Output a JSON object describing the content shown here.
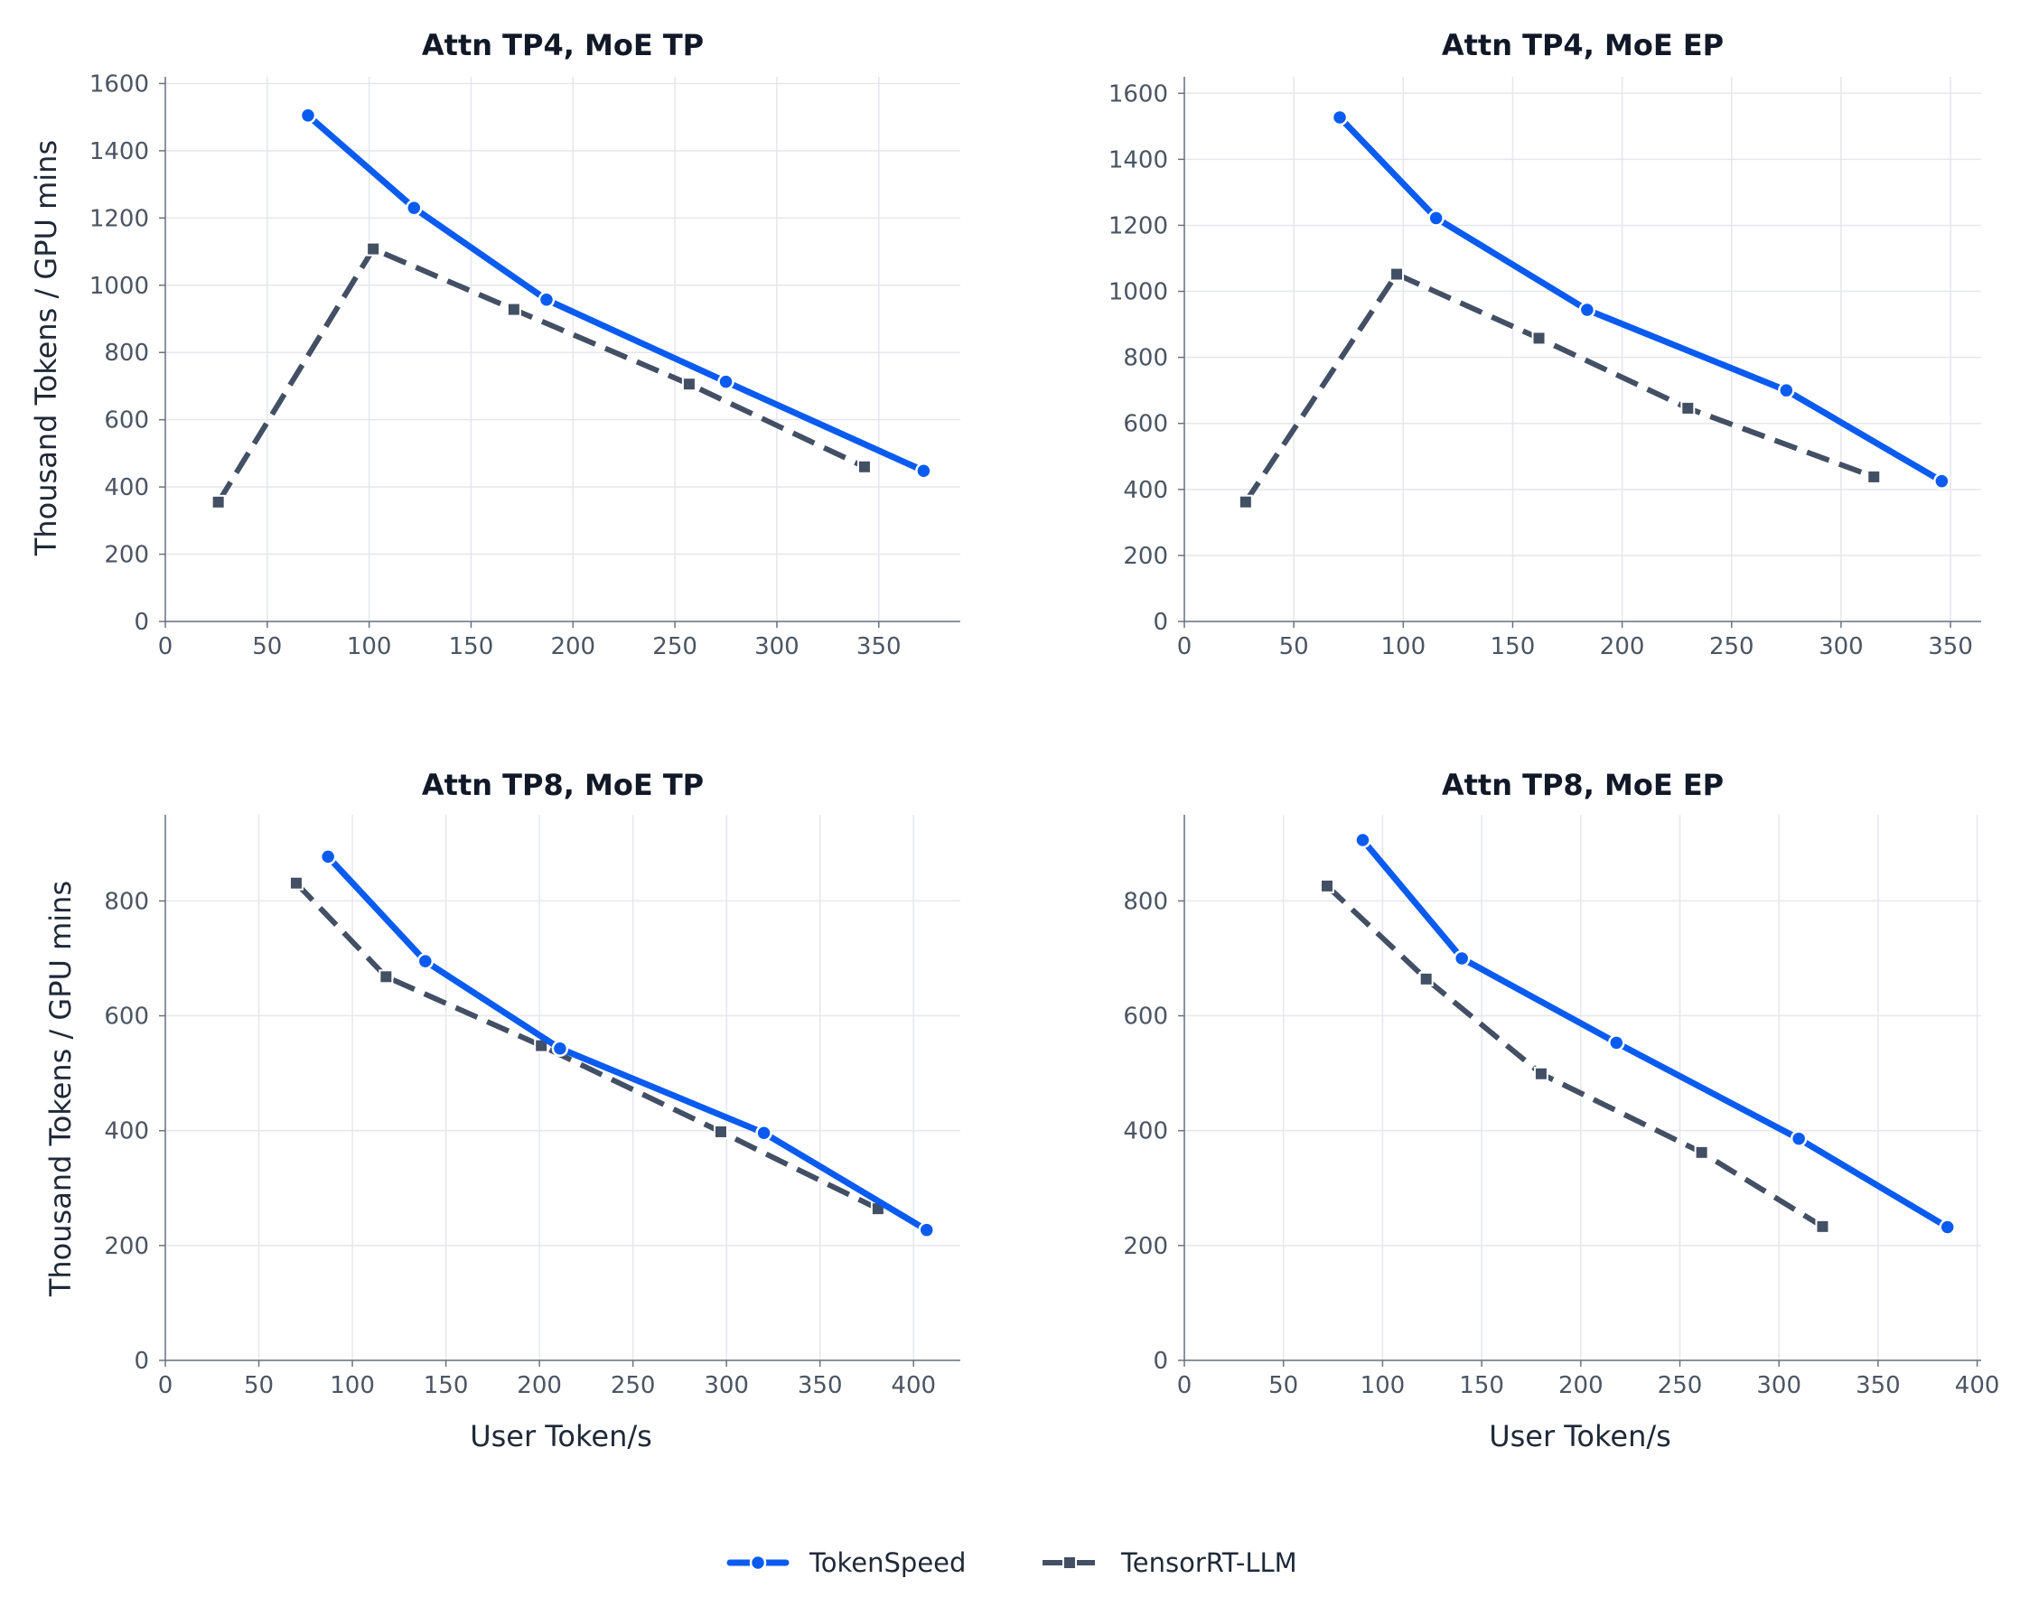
{
  "colors": {
    "tokenspeed": "#0a5bf0",
    "tensorrt": "#434f64",
    "grid": "#e5e7eb",
    "axis": "#6b7280"
  },
  "legend": {
    "items": [
      {
        "label": "TokenSpeed",
        "series_index": 0
      },
      {
        "label": "TensorRT-LLM",
        "series_index": 1
      }
    ],
    "placement": "bottom-center"
  },
  "chart_data": [
    {
      "type": "line",
      "title": "Attn TP4, MoE TP",
      "xlabel": "",
      "ylabel": "Thousand Tokens / GPU mins",
      "xlim": [
        0,
        390
      ],
      "ylim": [
        0,
        1620
      ],
      "xticks": [
        0,
        50,
        100,
        150,
        200,
        250,
        300,
        350
      ],
      "yticks": [
        0,
        200,
        400,
        600,
        800,
        1000,
        1200,
        1400,
        1600
      ],
      "grid": true,
      "series": [
        {
          "name": "TokenSpeed",
          "x": [
            70,
            122,
            187,
            275,
            372
          ],
          "y": [
            1505,
            1230,
            957,
            713,
            448
          ]
        },
        {
          "name": "TensorRT-LLM",
          "x": [
            26,
            102,
            171,
            257,
            343
          ],
          "y": [
            355,
            1108,
            928,
            706,
            460
          ]
        }
      ]
    },
    {
      "type": "line",
      "title": "Attn TP4, MoE EP",
      "xlabel": "",
      "ylabel": "",
      "xlim": [
        0,
        364
      ],
      "ylim": [
        0,
        1650
      ],
      "xticks": [
        0,
        50,
        100,
        150,
        200,
        250,
        300,
        350
      ],
      "yticks": [
        0,
        200,
        400,
        600,
        800,
        1000,
        1200,
        1400,
        1600
      ],
      "grid": true,
      "series": [
        {
          "name": "TokenSpeed",
          "x": [
            71,
            115,
            184,
            275,
            346
          ],
          "y": [
            1527,
            1222,
            944,
            700,
            425
          ]
        },
        {
          "name": "TensorRT-LLM",
          "x": [
            28,
            97,
            162,
            230,
            315
          ],
          "y": [
            362,
            1052,
            858,
            646,
            438
          ]
        }
      ]
    },
    {
      "type": "line",
      "title": "Attn TP8, MoE TP",
      "xlabel": "User Token/s",
      "ylabel": "Thousand Tokens / GPU mins",
      "xlim": [
        0,
        425
      ],
      "ylim": [
        0,
        950
      ],
      "xticks": [
        0,
        50,
        100,
        150,
        200,
        250,
        300,
        350,
        400
      ],
      "yticks": [
        0,
        200,
        400,
        600,
        800
      ],
      "grid": true,
      "series": [
        {
          "name": "TokenSpeed",
          "x": [
            87,
            139,
            211,
            320,
            407
          ],
          "y": [
            877,
            695,
            543,
            396,
            227
          ]
        },
        {
          "name": "TensorRT-LLM",
          "x": [
            70,
            118,
            201,
            297,
            381
          ],
          "y": [
            831,
            668,
            548,
            398,
            264
          ]
        }
      ]
    },
    {
      "type": "line",
      "title": "Attn TP8, MoE EP",
      "xlabel": "User Token/s",
      "ylabel": "",
      "xlim": [
        0,
        402
      ],
      "ylim": [
        0,
        950
      ],
      "xticks": [
        0,
        50,
        100,
        150,
        200,
        250,
        300,
        350,
        400
      ],
      "yticks": [
        0,
        200,
        400,
        600,
        800
      ],
      "grid": true,
      "series": [
        {
          "name": "TokenSpeed",
          "x": [
            90,
            140,
            218,
            310,
            385
          ],
          "y": [
            906,
            700,
            553,
            386,
            232
          ]
        },
        {
          "name": "TensorRT-LLM",
          "x": [
            72,
            122,
            180,
            261,
            322
          ],
          "y": [
            826,
            664,
            499,
            362,
            233
          ]
        }
      ]
    }
  ]
}
